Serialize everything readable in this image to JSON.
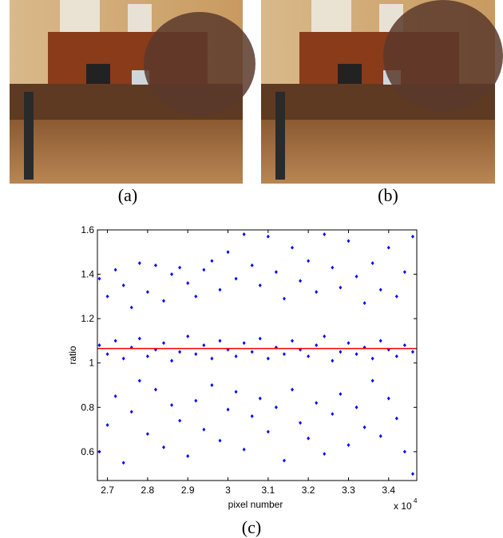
{
  "captions": [
    "(a)",
    "(b)",
    "(c)"
  ],
  "chart_data": {
    "type": "scatter",
    "xlabel": "pixel number",
    "ylabel": "ratio",
    "x_multiplier": {
      "base": "x 10",
      "exponent": "4"
    },
    "xlim": [
      26750,
      34700
    ],
    "ylim": [
      0.47,
      1.6
    ],
    "xticks": [
      {
        "value": 27000,
        "label": "2.7"
      },
      {
        "value": 28000,
        "label": "2.8"
      },
      {
        "value": 29000,
        "label": "2.9"
      },
      {
        "value": 30000,
        "label": "3"
      },
      {
        "value": 31000,
        "label": "3.1"
      },
      {
        "value": 32000,
        "label": "3.2"
      },
      {
        "value": 33000,
        "label": "3.3"
      },
      {
        "value": 34000,
        "label": "3.4"
      }
    ],
    "yticks": [
      0.6,
      0.8,
      1,
      1.2,
      1.4,
      1.6
    ],
    "color": "#0000ff",
    "reference_line": {
      "y": 1.065,
      "color": "#ff0000"
    },
    "x": [
      26800,
      26800,
      26800,
      27000,
      27000,
      27000,
      27200,
      27200,
      27200,
      27400,
      27400,
      27400,
      27600,
      27600,
      27600,
      27800,
      27800,
      27800,
      28000,
      28000,
      28000,
      28200,
      28200,
      28200,
      28400,
      28400,
      28400,
      28600,
      28600,
      28600,
      28800,
      28800,
      28800,
      29000,
      29000,
      29000,
      29200,
      29200,
      29200,
      29400,
      29400,
      29400,
      29600,
      29600,
      29600,
      29800,
      29800,
      29800,
      30000,
      30000,
      30000,
      30200,
      30200,
      30200,
      30400,
      30400,
      30400,
      30600,
      30600,
      30600,
      30800,
      30800,
      30800,
      31000,
      31000,
      31000,
      31200,
      31200,
      31200,
      31400,
      31400,
      31400,
      31600,
      31600,
      31600,
      31800,
      31800,
      31800,
      32000,
      32000,
      32000,
      32200,
      32200,
      32200,
      32400,
      32400,
      32400,
      32600,
      32600,
      32600,
      32800,
      32800,
      32800,
      33000,
      33000,
      33000,
      33200,
      33200,
      33200,
      33400,
      33400,
      33400,
      33600,
      33600,
      33600,
      33800,
      33800,
      33800,
      34000,
      34000,
      34000,
      34200,
      34200,
      34200,
      34400,
      34400,
      34400,
      34600,
      34600,
      34600
    ],
    "y": [
      1.08,
      1.38,
      0.6,
      1.04,
      1.3,
      0.72,
      1.1,
      1.42,
      0.85,
      1.02,
      1.35,
      0.55,
      1.07,
      1.25,
      0.78,
      1.11,
      1.45,
      0.92,
      1.03,
      1.32,
      0.68,
      1.06,
      1.44,
      0.88,
      1.09,
      1.28,
      0.62,
      1.01,
      1.4,
      0.81,
      1.05,
      1.43,
      0.74,
      1.12,
      1.36,
      0.58,
      1.04,
      1.3,
      0.83,
      1.08,
      1.42,
      0.7,
      1.02,
      1.46,
      0.9,
      1.1,
      1.33,
      0.65,
      1.06,
      1.5,
      0.79,
      1.03,
      1.38,
      0.87,
      1.09,
      1.58,
      0.61,
      1.05,
      1.44,
      0.76,
      1.11,
      1.35,
      0.84,
      1.02,
      1.57,
      0.69,
      1.07,
      1.41,
      0.8,
      1.04,
      1.29,
      0.56,
      1.1,
      1.52,
      0.88,
      1.06,
      1.37,
      0.73,
      1.03,
      1.46,
      0.66,
      1.08,
      1.32,
      0.82,
      1.12,
      1.58,
      0.59,
      1.01,
      1.43,
      0.77,
      1.05,
      1.34,
      0.86,
      1.09,
      1.55,
      0.63,
      1.04,
      1.39,
      0.8,
      1.07,
      1.27,
      0.71,
      1.02,
      1.45,
      0.92,
      1.1,
      1.33,
      0.67,
      1.06,
      1.52,
      0.84,
      1.03,
      1.3,
      0.75,
      1.08,
      1.41,
      0.6,
      1.05,
      1.57,
      0.5
    ]
  }
}
